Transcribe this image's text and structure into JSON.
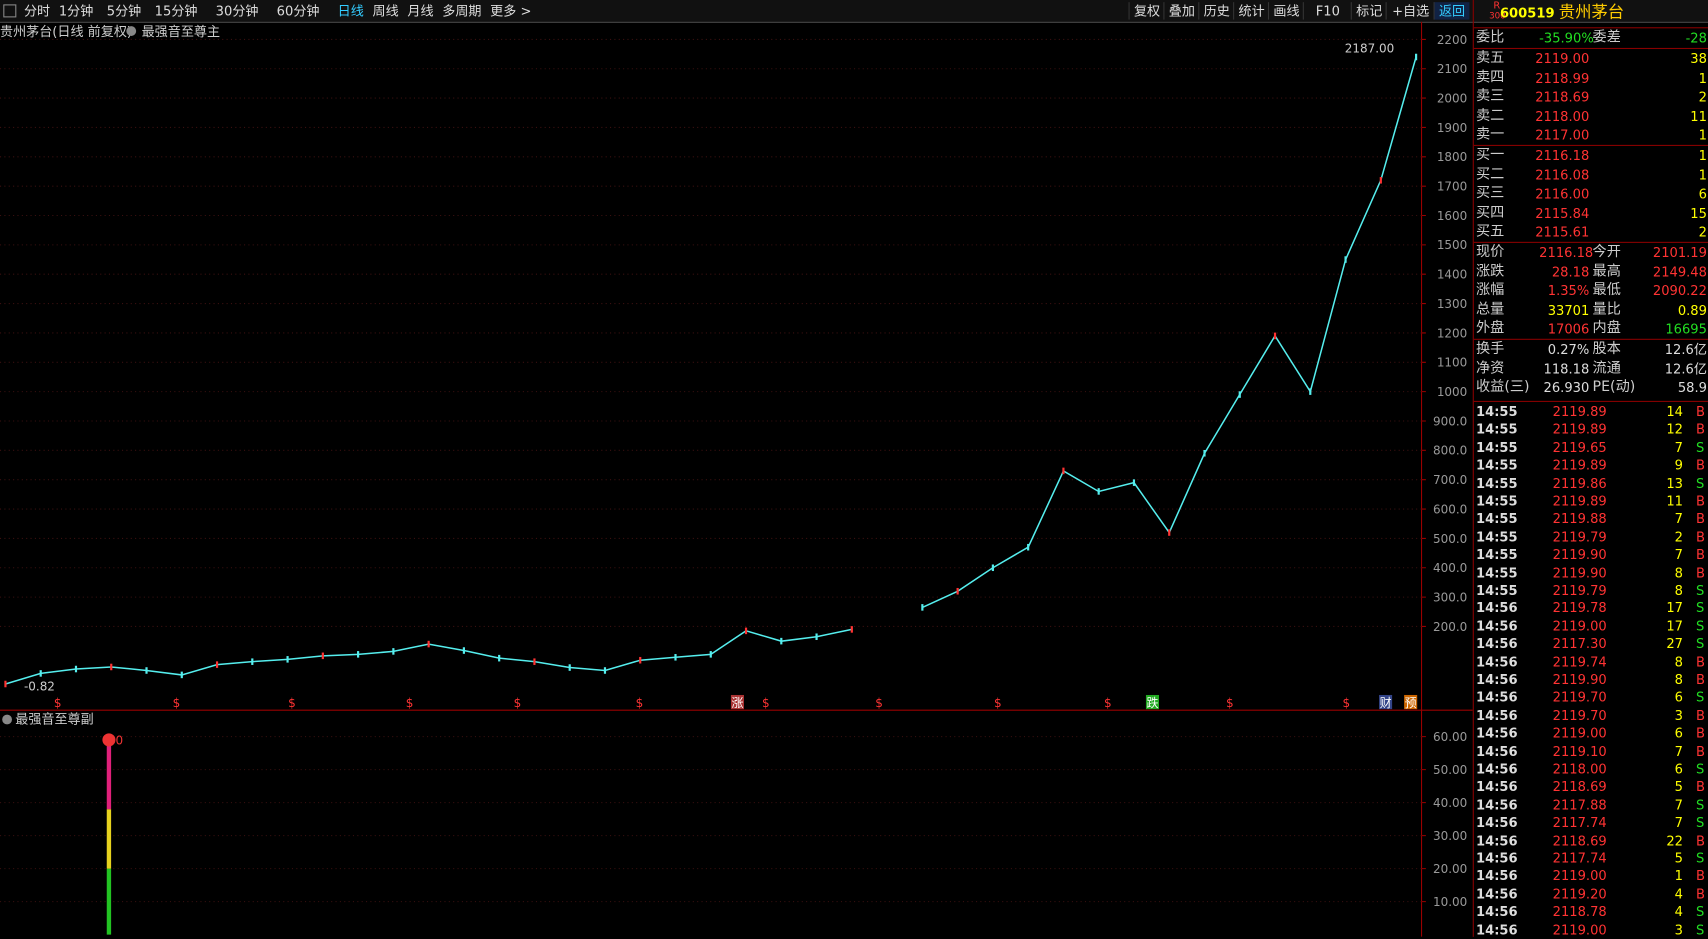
{
  "toolbar": {
    "periods": [
      "分时",
      "1分钟",
      "5分钟",
      "15分钟",
      "30分钟",
      "60分钟",
      "日线",
      "周线",
      "月线",
      "多周期",
      "更多 >"
    ],
    "active": 6,
    "tools": [
      "复权",
      "叠加",
      "历史",
      "统计",
      "画线",
      "F10",
      "标记",
      "+自选",
      "返回"
    ]
  },
  "main": {
    "title": "贵州茅台(日线 前复权)",
    "indicator": "最强音至尊主",
    "ylim": [
      0,
      2260
    ],
    "yticks": [
      2200,
      2100,
      2000,
      1900,
      1800,
      1700,
      1600,
      1500,
      1400,
      1300,
      1200,
      1100,
      1000,
      {
        "value": 900,
        "label": "900.0"
      },
      {
        "value": 800,
        "label": "800.0"
      },
      {
        "value": 700,
        "label": "700.0"
      },
      {
        "value": 600,
        "label": "600.0"
      },
      {
        "value": 500,
        "label": "500.0"
      },
      {
        "value": 400,
        "label": "400.0"
      },
      {
        "value": 300,
        "label": "300.0"
      },
      {
        "value": 200,
        "label": "200.0"
      }
    ],
    "prices": [
      4,
      40,
      55,
      62,
      50,
      35,
      70,
      80,
      88,
      100,
      105,
      115,
      140,
      118,
      92,
      80,
      60,
      50,
      85,
      95,
      105,
      185,
      150,
      165,
      190,
      null,
      265,
      320,
      400,
      470,
      730,
      660,
      690,
      520,
      790,
      990,
      1190,
      1000,
      1450,
      1720,
      2140
    ],
    "high_label": "2187.00",
    "low_label": "-0.82",
    "signals": [
      "$",
      "$",
      "$",
      "$",
      "$",
      "$",
      "涨",
      "$",
      "$",
      "$",
      "$",
      "跌",
      "$",
      "$",
      "财",
      "预"
    ]
  },
  "sub": {
    "title": "最强音至尊副",
    "ylim": [
      0,
      68
    ],
    "yticks": [
      {
        "value": 60,
        "label": "60.00"
      },
      {
        "value": 50,
        "label": "50.00"
      },
      {
        "value": 40,
        "label": "40.00"
      },
      {
        "value": 30,
        "label": "30.00"
      },
      {
        "value": 20,
        "label": "20.00"
      },
      {
        "value": 10,
        "label": "10.00"
      }
    ],
    "marker": "0",
    "segments": [
      {
        "color": "#22c322",
        "value": 20
      },
      {
        "color": "#e6d21e",
        "value": 18
      },
      {
        "color": "#e0207a",
        "value": 21
      }
    ]
  },
  "quote": {
    "badge": [
      "R",
      "300"
    ],
    "code": "600519",
    "name": "贵州茅台",
    "ratio": [
      "委比",
      "-35.90%",
      "委差",
      "-28"
    ],
    "asks": [
      [
        "卖五",
        "2119.00",
        "38"
      ],
      [
        "卖四",
        "2118.99",
        "1"
      ],
      [
        "卖三",
        "2118.69",
        "2"
      ],
      [
        "卖二",
        "2118.00",
        "11"
      ],
      [
        "卖一",
        "2117.00",
        "1"
      ]
    ],
    "bids": [
      [
        "买一",
        "2116.18",
        "1"
      ],
      [
        "买二",
        "2116.08",
        "1"
      ],
      [
        "买三",
        "2116.00",
        "6"
      ],
      [
        "买四",
        "2115.84",
        "15"
      ],
      [
        "买五",
        "2115.61",
        "2"
      ]
    ],
    "stats": [
      [
        "现价",
        "2116.18",
        "今开",
        "2101.19"
      ],
      [
        "涨跌",
        "28.18",
        "最高",
        "2149.48"
      ],
      [
        "涨幅",
        "1.35%",
        "最低",
        "2090.22"
      ],
      [
        "总量",
        "33701",
        "量比",
        "0.89"
      ],
      [
        "外盘",
        "17006",
        "内盘",
        "16695"
      ]
    ],
    "info": [
      [
        "换手",
        "0.27%",
        "股本",
        "12.6亿"
      ],
      [
        "净资",
        "118.18",
        "流通",
        "12.6亿"
      ],
      [
        "收益(三)",
        "26.930",
        "PE(动)",
        "58.9"
      ]
    ],
    "trades": [
      [
        "14:55",
        "2119.89",
        "14",
        "B"
      ],
      [
        "14:55",
        "2119.89",
        "12",
        "B"
      ],
      [
        "14:55",
        "2119.65",
        "7",
        "S"
      ],
      [
        "14:55",
        "2119.89",
        "9",
        "B"
      ],
      [
        "14:55",
        "2119.86",
        "13",
        "S"
      ],
      [
        "14:55",
        "2119.89",
        "11",
        "B"
      ],
      [
        "14:55",
        "2119.88",
        "7",
        "B"
      ],
      [
        "14:55",
        "2119.79",
        "2",
        "B"
      ],
      [
        "14:55",
        "2119.90",
        "7",
        "B"
      ],
      [
        "14:55",
        "2119.90",
        "8",
        "B"
      ],
      [
        "14:55",
        "2119.79",
        "8",
        "S"
      ],
      [
        "14:56",
        "2119.78",
        "17",
        "S"
      ],
      [
        "14:56",
        "2119.00",
        "17",
        "S"
      ],
      [
        "14:56",
        "2117.30",
        "27",
        "S"
      ],
      [
        "14:56",
        "2119.74",
        "8",
        "B"
      ],
      [
        "14:56",
        "2119.90",
        "8",
        "B"
      ],
      [
        "14:56",
        "2119.70",
        "6",
        "S"
      ],
      [
        "14:56",
        "2119.70",
        "3",
        "B"
      ],
      [
        "14:56",
        "2119.00",
        "6",
        "B"
      ],
      [
        "14:56",
        "2119.10",
        "7",
        "B"
      ],
      [
        "14:56",
        "2118.00",
        "6",
        "S"
      ],
      [
        "14:56",
        "2118.69",
        "5",
        "B"
      ],
      [
        "14:56",
        "2117.88",
        "7",
        "S"
      ],
      [
        "14:56",
        "2117.74",
        "7",
        "S"
      ],
      [
        "14:56",
        "2118.69",
        "22",
        "B"
      ],
      [
        "14:56",
        "2117.74",
        "5",
        "S"
      ],
      [
        "14:56",
        "2119.00",
        "1",
        "B"
      ],
      [
        "14:56",
        "2119.20",
        "4",
        "B"
      ],
      [
        "14:56",
        "2118.78",
        "4",
        "S"
      ],
      [
        "14:56",
        "2119.00",
        "3",
        "S"
      ]
    ]
  }
}
